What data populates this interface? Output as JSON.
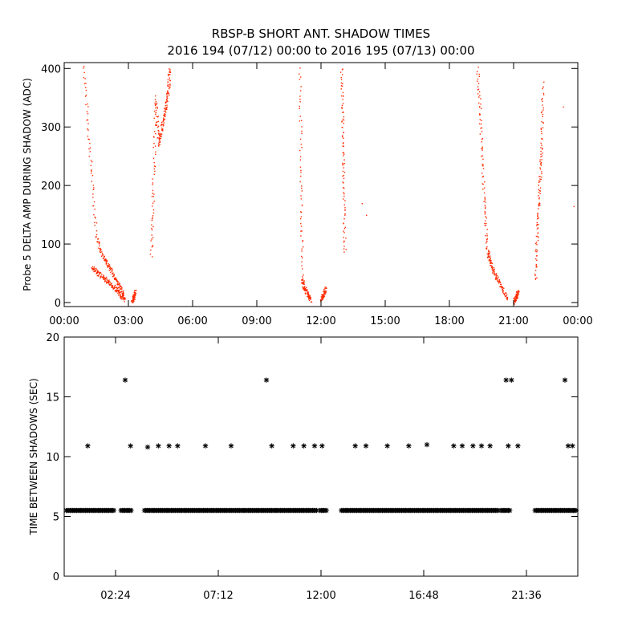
{
  "title": "RBSP-B SHORT ANT. SHADOW TIMES",
  "subtitle": "2016 194 (07/12) 00:00 to 2016 195 (07/13) 00:00",
  "chart_data": [
    {
      "type": "scatter",
      "ylabel": "Probe 5 DELTA AMP DURING SHADOW (ADC)",
      "xlabel": "",
      "xlim": [
        "00:00",
        "24:00"
      ],
      "ylim": [
        0,
        410
      ],
      "x_unit": "hours",
      "x_ticks": [
        "00:00",
        "03:00",
        "06:00",
        "09:00",
        "12:00",
        "15:00",
        "18:00",
        "21:00",
        "00:00"
      ],
      "y_ticks": [
        0,
        100,
        200,
        300,
        400
      ],
      "point_color": "#ff2a00",
      "segments": [
        {
          "name": "decay-1a",
          "x": [
            0.9,
            1.2,
            1.5,
            1.8,
            2.1,
            2.4,
            2.7,
            2.8
          ],
          "y": [
            405,
            250,
            110,
            80,
            60,
            40,
            20,
            5
          ]
        },
        {
          "name": "decay-1b",
          "x": [
            1.3,
            1.6,
            1.9,
            2.2,
            2.5,
            2.7
          ],
          "y": [
            60,
            50,
            40,
            30,
            20,
            8
          ]
        },
        {
          "name": "rise-1",
          "x": [
            3.15,
            3.25,
            3.3
          ],
          "y": [
            2,
            10,
            20
          ]
        },
        {
          "name": "burst-1",
          "x": [
            4.05,
            4.15,
            4.25,
            4.4,
            4.55,
            4.7,
            4.85,
            4.9
          ],
          "y": [
            80,
            200,
            350,
            270,
            300,
            330,
            360,
            400
          ]
        },
        {
          "name": "decay-2",
          "x": [
            11.0,
            11.05,
            11.1,
            11.2,
            11.35,
            11.5
          ],
          "y": [
            400,
            200,
            40,
            25,
            15,
            5
          ]
        },
        {
          "name": "rise-2",
          "x": [
            12.0,
            12.1,
            12.2
          ],
          "y": [
            5,
            15,
            25
          ]
        },
        {
          "name": "spike-2",
          "x": [
            12.95,
            13.0,
            13.05,
            13.1
          ],
          "y": [
            400,
            300,
            200,
            80
          ]
        },
        {
          "name": "decay-3a",
          "x": [
            19.3,
            19.45,
            19.6,
            19.75,
            19.9,
            20.1,
            20.4,
            20.7
          ],
          "y": [
            400,
            300,
            180,
            90,
            70,
            50,
            30,
            5
          ]
        },
        {
          "name": "rise-3",
          "x": [
            21.0,
            21.1,
            21.2
          ],
          "y": [
            2,
            10,
            20
          ]
        },
        {
          "name": "burst-3",
          "x": [
            22.0,
            22.1,
            22.2,
            22.3,
            22.35
          ],
          "y": [
            40,
            130,
            200,
            270,
            380
          ]
        }
      ],
      "isolated_points": [
        {
          "x": 13.9,
          "y": 170
        },
        {
          "x": 14.1,
          "y": 150
        },
        {
          "x": 23.3,
          "y": 335
        },
        {
          "x": 23.8,
          "y": 165
        }
      ]
    },
    {
      "type": "scatter",
      "ylabel": "TIME BETWEEN SHADOWS (SEC)",
      "xlabel": "",
      "ylim": [
        0,
        20
      ],
      "y_ticks": [
        0,
        5,
        10,
        15,
        20
      ],
      "x_ticks": [
        "02:24",
        "07:12",
        "12:00",
        "16:48",
        "21:36"
      ],
      "x_tick_hours": [
        2.4,
        7.2,
        12.0,
        16.8,
        21.6
      ],
      "marker": "asterisk",
      "baseline_value": 5.5,
      "baseline_ranges_hours": [
        [
          0.1,
          2.35
        ],
        [
          2.65,
          3.15
        ],
        [
          3.75,
          11.85
        ],
        [
          11.95,
          12.3
        ],
        [
          12.95,
          20.3
        ],
        [
          20.4,
          20.85
        ],
        [
          22.0,
          23.95
        ]
      ],
      "points": [
        {
          "x": 1.1,
          "y": 10.9
        },
        {
          "x": 2.85,
          "y": 16.4
        },
        {
          "x": 3.1,
          "y": 10.9
        },
        {
          "x": 3.9,
          "y": 10.8
        },
        {
          "x": 4.4,
          "y": 10.9
        },
        {
          "x": 4.9,
          "y": 10.9
        },
        {
          "x": 5.3,
          "y": 10.9
        },
        {
          "x": 6.6,
          "y": 10.9
        },
        {
          "x": 7.8,
          "y": 10.9
        },
        {
          "x": 9.45,
          "y": 16.4
        },
        {
          "x": 9.7,
          "y": 10.9
        },
        {
          "x": 10.7,
          "y": 10.9
        },
        {
          "x": 11.2,
          "y": 10.9
        },
        {
          "x": 11.7,
          "y": 10.9
        },
        {
          "x": 12.05,
          "y": 10.9
        },
        {
          "x": 13.6,
          "y": 10.9
        },
        {
          "x": 14.1,
          "y": 10.9
        },
        {
          "x": 15.1,
          "y": 10.9
        },
        {
          "x": 16.1,
          "y": 10.9
        },
        {
          "x": 16.95,
          "y": 11.0
        },
        {
          "x": 18.2,
          "y": 10.9
        },
        {
          "x": 18.6,
          "y": 10.9
        },
        {
          "x": 19.1,
          "y": 10.9
        },
        {
          "x": 19.5,
          "y": 10.9
        },
        {
          "x": 19.9,
          "y": 10.9
        },
        {
          "x": 20.65,
          "y": 16.4
        },
        {
          "x": 20.9,
          "y": 16.4
        },
        {
          "x": 20.75,
          "y": 10.9
        },
        {
          "x": 21.2,
          "y": 10.9
        },
        {
          "x": 23.4,
          "y": 16.4
        },
        {
          "x": 23.55,
          "y": 10.9
        },
        {
          "x": 23.75,
          "y": 10.9
        }
      ]
    }
  ]
}
